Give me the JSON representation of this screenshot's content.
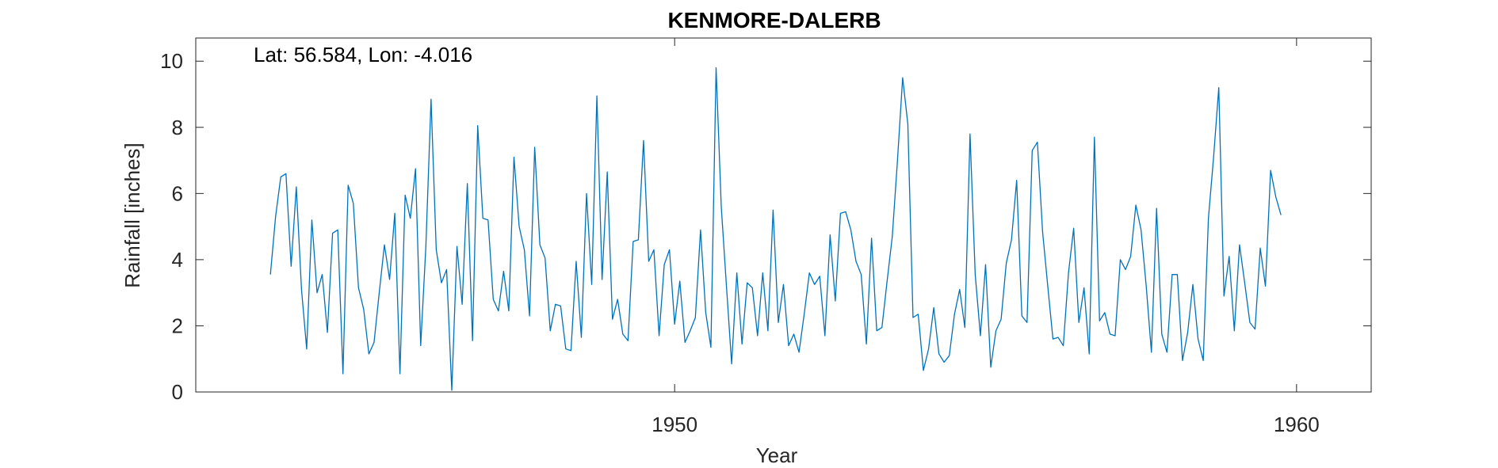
{
  "chart_data": {
    "type": "line",
    "title": "KENMORE-DALERB",
    "xlabel": "Year",
    "ylabel": "Rainfall [inches]",
    "annotation": "Lat: 56.584, Lon: -4.016",
    "xlim": [
      1942.3,
      1961.2
    ],
    "ylim": [
      0,
      10.7
    ],
    "x_ticks": [
      1950,
      1960
    ],
    "y_ticks": [
      0,
      2,
      4,
      6,
      8,
      10
    ],
    "grid": false,
    "line_color": "#0072BD",
    "series": [
      {
        "x_start": 1943.5,
        "x_step": 0.08333,
        "values": [
          3.55,
          5.3,
          6.5,
          6.6,
          3.8,
          6.2,
          3.1,
          1.3,
          5.2,
          3.0,
          3.55,
          1.8,
          4.8,
          4.9,
          0.55,
          6.25,
          5.7,
          3.15,
          2.5,
          1.15,
          1.5,
          3.0,
          4.45,
          3.4,
          5.4,
          0.55,
          5.95,
          5.25,
          6.75,
          1.4,
          4.4,
          8.85,
          4.3,
          3.3,
          3.7,
          0.05,
          4.4,
          2.65,
          6.3,
          1.55,
          8.05,
          5.25,
          5.2,
          2.8,
          2.45,
          3.65,
          2.45,
          7.1,
          5.0,
          4.3,
          2.3,
          7.4,
          4.45,
          4.05,
          1.85,
          2.65,
          2.6,
          1.3,
          1.25,
          3.95,
          1.65,
          6.0,
          3.25,
          8.95,
          3.4,
          6.65,
          2.2,
          2.8,
          1.75,
          1.55,
          4.55,
          4.6,
          7.6,
          3.95,
          4.3,
          1.7,
          3.85,
          4.3,
          2.05,
          3.35,
          1.5,
          1.85,
          2.25,
          4.9,
          2.4,
          1.35,
          9.8,
          5.6,
          3.2,
          0.85,
          3.6,
          1.45,
          3.3,
          3.15,
          1.7,
          3.6,
          1.85,
          5.5,
          2.1,
          3.25,
          1.4,
          1.75,
          1.2,
          2.35,
          3.6,
          3.25,
          3.5,
          1.7,
          4.75,
          2.75,
          5.4,
          5.45,
          4.9,
          3.95,
          3.55,
          1.45,
          4.65,
          1.85,
          1.95,
          3.35,
          4.7,
          7.0,
          9.5,
          8.1,
          2.25,
          2.35,
          0.65,
          1.3,
          2.55,
          1.15,
          0.9,
          1.1,
          2.35,
          3.1,
          1.95,
          7.8,
          3.55,
          1.7,
          3.85,
          0.75,
          1.85,
          2.2,
          3.9,
          4.6,
          6.4,
          2.3,
          2.1,
          7.3,
          7.55,
          4.85,
          3.2,
          1.6,
          1.65,
          1.4,
          3.6,
          4.95,
          2.1,
          3.15,
          1.15,
          7.7,
          2.15,
          2.4,
          1.75,
          1.7,
          4.0,
          3.7,
          4.1,
          5.65,
          4.9,
          3.2,
          1.2,
          5.55,
          1.75,
          1.2,
          3.55,
          3.55,
          0.95,
          1.8,
          3.25,
          1.6,
          0.95,
          5.25,
          7.1,
          9.2,
          2.9,
          4.1,
          1.85,
          4.45,
          3.3,
          2.1,
          1.9,
          4.35,
          3.2,
          6.7,
          5.9,
          5.35
        ]
      }
    ]
  }
}
